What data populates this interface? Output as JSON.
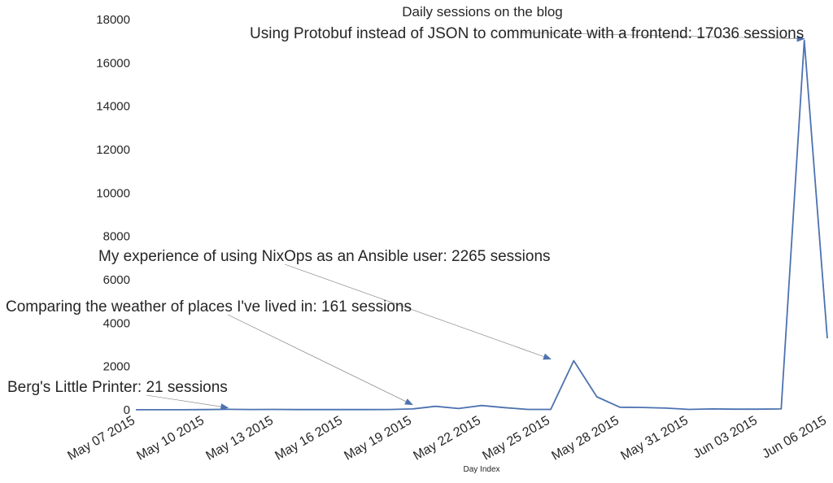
{
  "chart_data": {
    "type": "line",
    "title": "Daily sessions on the blog",
    "xlabel": "Day Index",
    "ylabel": "",
    "ylim": [
      0,
      18000
    ],
    "xlim": [
      "2015-05-07",
      "2015-06-06"
    ],
    "grid": false,
    "legend": "none",
    "colors": {
      "line": "#4c72b0",
      "arrow": "#4c72b0",
      "arrow_shaft": "#777777",
      "text": "#262626"
    },
    "yticks": [
      "0",
      "2000",
      "4000",
      "6000",
      "8000",
      "10000",
      "12000",
      "14000",
      "16000",
      "18000"
    ],
    "ytick_values": [
      0,
      2000,
      4000,
      6000,
      8000,
      10000,
      12000,
      14000,
      16000,
      18000
    ],
    "xticks": [
      "May 07 2015",
      "May 10 2015",
      "May 13 2015",
      "May 16 2015",
      "May 19 2015",
      "May 22 2015",
      "May 25 2015",
      "May 28 2015",
      "May 31 2015",
      "Jun 03 2015",
      "Jun 06 2015"
    ],
    "xtick_dates": [
      "2015-05-07",
      "2015-05-10",
      "2015-05-13",
      "2015-05-16",
      "2015-05-19",
      "2015-05-22",
      "2015-05-25",
      "2015-05-28",
      "2015-05-31",
      "2015-06-03",
      "2015-06-06"
    ],
    "series": [
      {
        "x": [
          "2015-05-07",
          "2015-05-08",
          "2015-05-09",
          "2015-05-10",
          "2015-05-11",
          "2015-05-12",
          "2015-05-13",
          "2015-05-14",
          "2015-05-15",
          "2015-05-16",
          "2015-05-17",
          "2015-05-18",
          "2015-05-19",
          "2015-05-20",
          "2015-05-21",
          "2015-05-22",
          "2015-05-23",
          "2015-05-24",
          "2015-05-25",
          "2015-05-26",
          "2015-05-27",
          "2015-05-28",
          "2015-05-29",
          "2015-05-30",
          "2015-05-31",
          "2015-06-01",
          "2015-06-02",
          "2015-06-03",
          "2015-06-04",
          "2015-06-05",
          "2015-06-06"
        ],
        "values": [
          5,
          5,
          5,
          10,
          21,
          15,
          20,
          10,
          10,
          10,
          10,
          15,
          40,
          161,
          60,
          200,
          100,
          20,
          20,
          2265,
          600,
          120,
          110,
          80,
          20,
          40,
          30,
          30,
          40,
          17036,
          3300
        ]
      }
    ],
    "annotations": [
      {
        "text": "Using Protobuf instead of JSON to communicate with a frontend: 17036 sessions",
        "x": "2015-06-05",
        "y": 17036
      },
      {
        "text": "My experience of using NixOps as an Ansible user: 2265 sessions",
        "x": "2015-05-25",
        "y": 2265
      },
      {
        "text": "Comparing the weather of places I've lived in: 161 sessions",
        "x": "2015-05-19",
        "y": 161
      },
      {
        "text": "Berg's Little Printer: 21 sessions",
        "x": "2015-05-11",
        "y": 21
      }
    ]
  }
}
